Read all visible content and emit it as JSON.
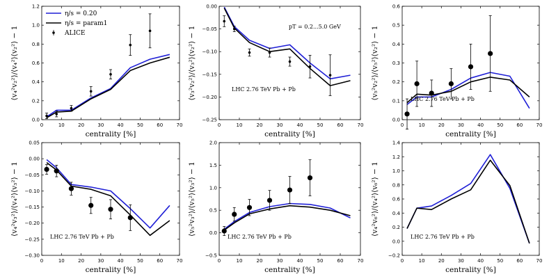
{
  "chart_data": [
    {
      "type": "line",
      "ylabel": "⟨v₄²v₂²⟩/⟨v₄²⟩⟨v₂²⟩ − 1",
      "xlabel": "centrality [%]",
      "xlim": [
        0,
        70
      ],
      "ylim": [
        0,
        1.2
      ],
      "xticks": [
        "0",
        "10",
        "20",
        "30",
        "40",
        "50",
        "60",
        "70"
      ],
      "yticks": [
        "0.0",
        "0.2",
        "0.4",
        "0.6",
        "0.8",
        "1.0",
        "1.2"
      ],
      "annotation": "",
      "legend": {
        "position": "top-left",
        "entries": [
          "η/s = 0.20",
          "η/s = param1",
          "ALICE"
        ]
      },
      "series": [
        {
          "name": "η/s = 0.20",
          "color": "#1f1fd6",
          "x": [
            2.5,
            7.5,
            15,
            25,
            35,
            45,
            55,
            65
          ],
          "y": [
            0.03,
            0.1,
            0.1,
            0.23,
            0.33,
            0.55,
            0.64,
            0.69
          ]
        },
        {
          "name": "η/s = param1",
          "color": "#000000",
          "x": [
            2.5,
            7.5,
            15,
            25,
            35,
            45,
            55,
            65
          ],
          "y": [
            0.02,
            0.08,
            0.09,
            0.22,
            0.32,
            0.52,
            0.6,
            0.66
          ]
        }
      ],
      "data_points": {
        "name": "ALICE",
        "marker": "small",
        "x": [
          2.5,
          7.5,
          15,
          25,
          35,
          45,
          55
        ],
        "y": [
          0.04,
          0.06,
          0.12,
          0.3,
          0.48,
          0.79,
          0.94
        ],
        "err": [
          0.03,
          0.03,
          0.03,
          0.05,
          0.05,
          0.11,
          0.18
        ]
      }
    },
    {
      "type": "line",
      "ylabel": "⟨v₃²v₂²⟩/⟨v₃²⟩⟨v₂²⟩ − 1",
      "xlabel": "centrality [%]",
      "xlim": [
        0,
        70
      ],
      "ylim": [
        -0.25,
        0
      ],
      "xticks": [
        "0",
        "10",
        "20",
        "30",
        "40",
        "50",
        "60",
        "70"
      ],
      "yticks": [
        "0.00",
        "−0.05",
        "−0.10",
        "−0.15",
        "−0.20",
        "−0.25"
      ],
      "annotation": "LHC 2.76 TeV Pb + Pb",
      "annotation2": "pT = 0.2...5.0 GeV",
      "series": [
        {
          "name": "η/s = 0.20",
          "color": "#1f1fd6",
          "x": [
            2.5,
            7.5,
            15,
            25,
            35,
            45,
            55,
            65
          ],
          "y": [
            -0.002,
            -0.045,
            -0.075,
            -0.093,
            -0.085,
            -0.125,
            -0.16,
            -0.152
          ]
        },
        {
          "name": "η/s = param1",
          "color": "#000000",
          "x": [
            2.5,
            7.5,
            15,
            25,
            35,
            45,
            55,
            65
          ],
          "y": [
            -0.004,
            -0.048,
            -0.08,
            -0.1,
            -0.094,
            -0.137,
            -0.175,
            -0.164
          ]
        }
      ],
      "data_points": {
        "name": "ALICE",
        "marker": "small",
        "x": [
          2.5,
          7.5,
          15,
          25,
          35,
          45,
          55
        ],
        "y": [
          -0.033,
          -0.05,
          -0.102,
          -0.102,
          -0.122,
          -0.133,
          -0.152
        ],
        "err": [
          0.012,
          0.006,
          0.008,
          0.01,
          0.01,
          0.025,
          0.045
        ]
      }
    },
    {
      "type": "line",
      "ylabel": "⟨v₅²v₂²⟩/⟨v₅²⟩⟨v₂²⟩ − 1",
      "xlabel": "centrality [%]",
      "xlim": [
        0,
        70
      ],
      "ylim": [
        0,
        0.6
      ],
      "xticks": [
        "0",
        "10",
        "20",
        "30",
        "40",
        "50",
        "60",
        "70"
      ],
      "yticks": [
        "0.0",
        "0.1",
        "0.2",
        "0.3",
        "0.4",
        "0.5",
        "0.6"
      ],
      "annotation": "LHC 2.76 TeV Pb + Pb",
      "series": [
        {
          "name": "η/s = 0.20",
          "color": "#1f1fd6",
          "x": [
            2.5,
            7.5,
            15,
            25,
            35,
            45,
            55,
            65
          ],
          "y": [
            0.08,
            0.12,
            0.12,
            0.16,
            0.22,
            0.25,
            0.23,
            0.06
          ]
        },
        {
          "name": "η/s = param1",
          "color": "#000000",
          "x": [
            2.5,
            7.5,
            15,
            25,
            35,
            45,
            55,
            65
          ],
          "y": [
            0.09,
            0.135,
            0.13,
            0.15,
            0.2,
            0.225,
            0.21,
            0.12
          ]
        }
      ],
      "data_points": {
        "name": "ALICE",
        "marker": "large",
        "x": [
          2.5,
          7.5,
          15,
          25,
          35,
          45
        ],
        "y": [
          0.03,
          0.19,
          0.14,
          0.19,
          0.28,
          0.35
        ],
        "err": [
          0.08,
          0.12,
          0.07,
          0.08,
          0.12,
          0.2
        ]
      }
    },
    {
      "type": "line",
      "ylabel": "⟨v₄²v₃²⟩/⟨v₄²⟩⟨v₃²⟩ − 1",
      "xlabel": "centrality [%]",
      "xlim": [
        0,
        70
      ],
      "ylim": [
        -0.3,
        0.05
      ],
      "xticks": [
        "0",
        "10",
        "20",
        "30",
        "40",
        "50",
        "60",
        "70"
      ],
      "yticks": [
        "0.05",
        "0.00",
        "−0.05",
        "−0.10",
        "−0.15",
        "−0.20",
        "−0.25",
        "−0.30"
      ],
      "annotation": "LHC 2.76 TeV Pb + Pb",
      "series": [
        {
          "name": "η/s = 0.20",
          "color": "#1f1fd6",
          "x": [
            2.5,
            7.5,
            15,
            25,
            35,
            45,
            55,
            65
          ],
          "y": [
            -0.003,
            -0.028,
            -0.08,
            -0.088,
            -0.1,
            -0.155,
            -0.215,
            -0.145
          ]
        },
        {
          "name": "η/s = param1",
          "color": "#000000",
          "x": [
            2.5,
            7.5,
            15,
            25,
            35,
            45,
            55,
            65
          ],
          "y": [
            -0.012,
            -0.035,
            -0.085,
            -0.095,
            -0.115,
            -0.175,
            -0.238,
            -0.192
          ]
        }
      ],
      "data_points": {
        "name": "ALICE",
        "marker": "large",
        "x": [
          2.5,
          7.5,
          15,
          25,
          35,
          45
        ],
        "y": [
          -0.033,
          -0.038,
          -0.093,
          -0.145,
          -0.157,
          -0.183
        ],
        "err": [
          0.015,
          0.018,
          0.02,
          0.025,
          0.03,
          0.04
        ]
      }
    },
    {
      "type": "line",
      "ylabel": "⟨v₅²v₃²⟩/⟨v₅²⟩⟨v₃²⟩ − 1",
      "xlabel": "centrality [%]",
      "xlim": [
        0,
        70
      ],
      "ylim": [
        -0.5,
        2.0
      ],
      "xticks": [
        "0",
        "10",
        "20",
        "30",
        "40",
        "50",
        "60",
        "70"
      ],
      "yticks": [
        "2.0",
        "1.5",
        "1.0",
        "0.5",
        "0.0",
        "−0.5"
      ],
      "annotation": "LHC 2.76 TeV Pb + Pb",
      "series": [
        {
          "name": "η/s = 0.20",
          "color": "#1f1fd6",
          "x": [
            2.5,
            7.5,
            15,
            25,
            35,
            45,
            55,
            65
          ],
          "y": [
            0.08,
            0.25,
            0.45,
            0.58,
            0.65,
            0.63,
            0.55,
            0.33
          ]
        },
        {
          "name": "η/s = param1",
          "color": "#000000",
          "x": [
            2.5,
            7.5,
            15,
            25,
            35,
            45,
            55,
            65
          ],
          "y": [
            0.06,
            0.22,
            0.42,
            0.53,
            0.6,
            0.57,
            0.5,
            0.38
          ]
        }
      ],
      "data_points": {
        "name": "ALICE",
        "marker": "large",
        "x": [
          2.5,
          7.5,
          15,
          25,
          35,
          45
        ],
        "y": [
          0.04,
          0.41,
          0.56,
          0.72,
          0.95,
          1.22
        ],
        "err": [
          0.1,
          0.15,
          0.18,
          0.22,
          0.3,
          0.4
        ]
      }
    },
    {
      "type": "line",
      "ylabel": "⟨v₄²v₆²⟩/⟨v₄²⟩⟨v₆²⟩ − 1",
      "xlabel": "centrality [%]",
      "xlim": [
        0,
        70
      ],
      "ylim": [
        -0.2,
        1.4
      ],
      "xticks": [
        "0",
        "10",
        "20",
        "30",
        "40",
        "50",
        "60",
        "70"
      ],
      "yticks": [
        "1.4",
        "1.2",
        "1.0",
        "0.8",
        "0.6",
        "0.4",
        "0.2",
        "0.0",
        "−0.2"
      ],
      "annotation": "LHC 2.76 TeV Pb + Pb",
      "series": [
        {
          "name": "η/s = 0.20",
          "color": "#1f1fd6",
          "x": [
            2.5,
            7.5,
            15,
            25,
            35,
            45,
            55,
            65
          ],
          "y": [
            0.18,
            0.47,
            0.5,
            0.65,
            0.82,
            1.23,
            0.75,
            -0.03
          ]
        },
        {
          "name": "η/s = param1",
          "color": "#000000",
          "x": [
            2.5,
            7.5,
            15,
            25,
            35,
            45,
            55,
            65
          ],
          "y": [
            0.18,
            0.47,
            0.45,
            0.6,
            0.73,
            1.15,
            0.79,
            -0.03
          ]
        }
      ]
    }
  ]
}
